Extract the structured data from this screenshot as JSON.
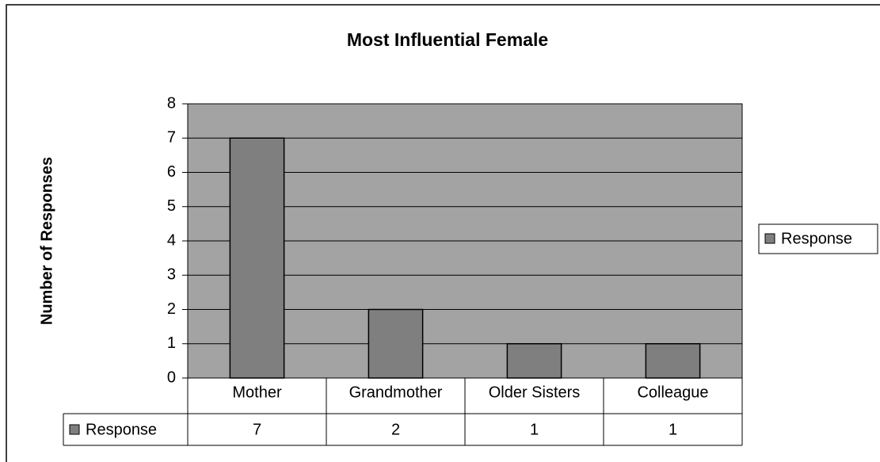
{
  "chart_data": {
    "type": "bar",
    "title": "Most Influential Female",
    "y_label": "Number of Responses",
    "categories": [
      "Mother",
      "Grandmother",
      "Older Sisters",
      "Colleague"
    ],
    "series": [
      {
        "name": "Response",
        "color": "#7f7f7f",
        "values": [
          7,
          2,
          1,
          1
        ]
      }
    ],
    "ylim": [
      0,
      8
    ],
    "yticks": [
      0,
      1,
      2,
      3,
      4,
      5,
      6,
      7,
      8
    ],
    "grid": true,
    "legend": "right"
  }
}
